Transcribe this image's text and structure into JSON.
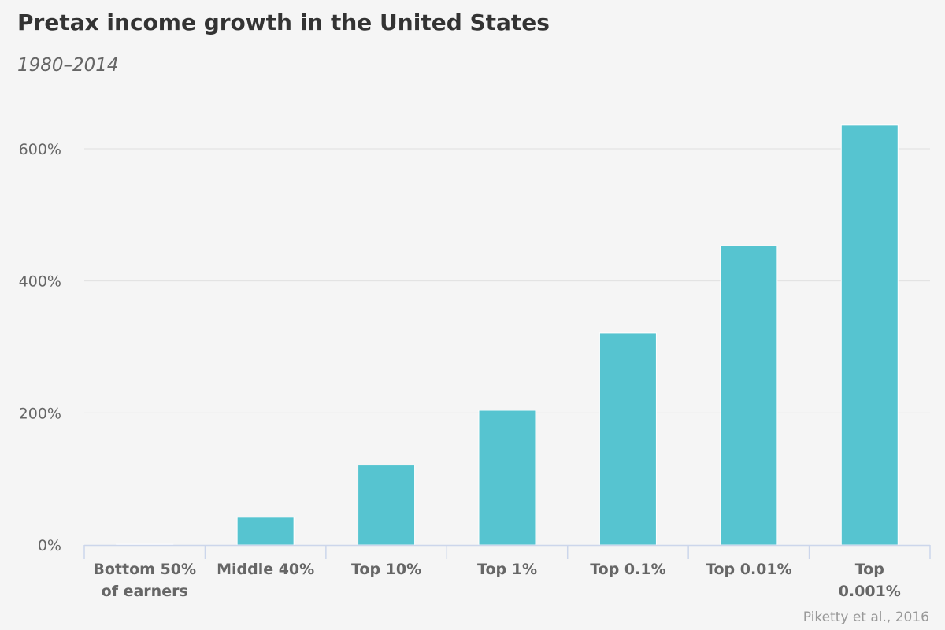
{
  "chart_data": {
    "type": "bar",
    "title": "Pretax income growth in the United States",
    "subtitle": "1980–2014",
    "credit": "Piketty et al., 2016",
    "categories": [
      [
        "Bottom 50%",
        "of earners"
      ],
      [
        "Middle 40%"
      ],
      [
        "Top 10%"
      ],
      [
        "Top 1%"
      ],
      [
        "Top 0.1%"
      ],
      [
        "Top 0.01%"
      ],
      [
        "Top",
        "0.001%"
      ]
    ],
    "values": [
      1,
      42,
      121,
      204,
      321,
      453,
      636
    ],
    "ylim": [
      0,
      700
    ],
    "yticks": [
      0,
      200,
      400,
      600
    ],
    "ytick_labels": [
      "0%",
      "200%",
      "400%",
      "600%"
    ],
    "xlabel": "",
    "ylabel": "",
    "grid": true,
    "bar_color": "#56c4d0",
    "grid_color": "#e0e0e0",
    "axis_color": "#ccd6eb"
  }
}
